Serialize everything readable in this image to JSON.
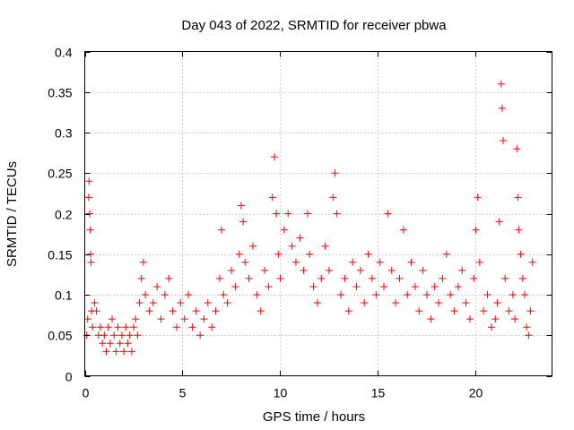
{
  "chart_data": {
    "type": "scatter",
    "title": "Day 043 of 2022, SRMTID for receiver pbwa",
    "xlabel": "GPS time / hours",
    "ylabel": "SRMTID / TECUs",
    "xlim": [
      0,
      23.9
    ],
    "ylim": [
      0,
      0.4
    ],
    "xticks": [
      0,
      5,
      10,
      15,
      20
    ],
    "xtick_labels": [
      "0",
      "5",
      "10",
      "15",
      "20"
    ],
    "yticks": [
      0,
      0.05,
      0.1,
      0.15,
      0.2,
      0.25,
      0.3,
      0.35,
      0.4
    ],
    "ytick_labels": [
      "0",
      "0.05",
      "0.1",
      "0.15",
      "0.2",
      "0.25",
      "0.3",
      "0.35",
      "0.4"
    ],
    "grid": true,
    "marker": "+",
    "color": "#ff0000",
    "series": [
      {
        "name": "SRMTID",
        "points": [
          [
            0.1,
            0.05
          ],
          [
            0.15,
            0.07
          ],
          [
            0.2,
            0.22
          ],
          [
            0.22,
            0.24
          ],
          [
            0.25,
            0.2
          ],
          [
            0.28,
            0.18
          ],
          [
            0.3,
            0.15
          ],
          [
            0.32,
            0.14
          ],
          [
            0.35,
            0.08
          ],
          [
            0.4,
            0.06
          ],
          [
            0.5,
            0.09
          ],
          [
            0.6,
            0.08
          ],
          [
            0.7,
            0.05
          ],
          [
            0.8,
            0.06
          ],
          [
            0.9,
            0.04
          ],
          [
            1.0,
            0.05
          ],
          [
            1.1,
            0.03
          ],
          [
            1.2,
            0.06
          ],
          [
            1.3,
            0.04
          ],
          [
            1.4,
            0.07
          ],
          [
            1.5,
            0.05
          ],
          [
            1.6,
            0.03
          ],
          [
            1.7,
            0.06
          ],
          [
            1.8,
            0.04
          ],
          [
            1.9,
            0.05
          ],
          [
            2.0,
            0.03
          ],
          [
            2.1,
            0.06
          ],
          [
            2.2,
            0.04
          ],
          [
            2.3,
            0.05
          ],
          [
            2.4,
            0.03
          ],
          [
            2.5,
            0.06
          ],
          [
            2.6,
            0.07
          ],
          [
            2.7,
            0.05
          ],
          [
            2.8,
            0.09
          ],
          [
            2.9,
            0.12
          ],
          [
            3.0,
            0.14
          ],
          [
            3.1,
            0.1
          ],
          [
            3.3,
            0.08
          ],
          [
            3.5,
            0.09
          ],
          [
            3.7,
            0.11
          ],
          [
            3.9,
            0.07
          ],
          [
            4.1,
            0.1
          ],
          [
            4.3,
            0.12
          ],
          [
            4.5,
            0.08
          ],
          [
            4.7,
            0.06
          ],
          [
            4.9,
            0.09
          ],
          [
            5.1,
            0.07
          ],
          [
            5.3,
            0.1
          ],
          [
            5.5,
            0.06
          ],
          [
            5.7,
            0.08
          ],
          [
            5.9,
            0.05
          ],
          [
            6.1,
            0.07
          ],
          [
            6.3,
            0.09
          ],
          [
            6.5,
            0.06
          ],
          [
            6.7,
            0.08
          ],
          [
            6.9,
            0.12
          ],
          [
            7.0,
            0.18
          ],
          [
            7.1,
            0.1
          ],
          [
            7.3,
            0.09
          ],
          [
            7.5,
            0.13
          ],
          [
            7.7,
            0.11
          ],
          [
            7.9,
            0.15
          ],
          [
            8.0,
            0.21
          ],
          [
            8.1,
            0.19
          ],
          [
            8.2,
            0.14
          ],
          [
            8.4,
            0.12
          ],
          [
            8.6,
            0.16
          ],
          [
            8.8,
            0.1
          ],
          [
            9.0,
            0.08
          ],
          [
            9.2,
            0.13
          ],
          [
            9.4,
            0.11
          ],
          [
            9.6,
            0.22
          ],
          [
            9.7,
            0.27
          ],
          [
            9.8,
            0.2
          ],
          [
            9.9,
            0.15
          ],
          [
            10.0,
            0.12
          ],
          [
            10.2,
            0.18
          ],
          [
            10.4,
            0.2
          ],
          [
            10.6,
            0.16
          ],
          [
            10.8,
            0.14
          ],
          [
            11.0,
            0.17
          ],
          [
            11.2,
            0.13
          ],
          [
            11.4,
            0.2
          ],
          [
            11.5,
            0.15
          ],
          [
            11.7,
            0.11
          ],
          [
            11.9,
            0.09
          ],
          [
            12.1,
            0.12
          ],
          [
            12.3,
            0.16
          ],
          [
            12.5,
            0.13
          ],
          [
            12.7,
            0.22
          ],
          [
            12.8,
            0.25
          ],
          [
            12.9,
            0.2
          ],
          [
            13.1,
            0.1
          ],
          [
            13.3,
            0.12
          ],
          [
            13.5,
            0.08
          ],
          [
            13.7,
            0.14
          ],
          [
            13.9,
            0.11
          ],
          [
            14.1,
            0.13
          ],
          [
            14.3,
            0.09
          ],
          [
            14.5,
            0.15
          ],
          [
            14.7,
            0.12
          ],
          [
            14.9,
            0.1
          ],
          [
            15.1,
            0.14
          ],
          [
            15.3,
            0.11
          ],
          [
            15.5,
            0.2
          ],
          [
            15.7,
            0.13
          ],
          [
            15.9,
            0.09
          ],
          [
            16.1,
            0.12
          ],
          [
            16.3,
            0.18
          ],
          [
            16.5,
            0.1
          ],
          [
            16.7,
            0.14
          ],
          [
            16.9,
            0.11
          ],
          [
            17.1,
            0.08
          ],
          [
            17.3,
            0.13
          ],
          [
            17.5,
            0.1
          ],
          [
            17.7,
            0.07
          ],
          [
            17.9,
            0.11
          ],
          [
            18.1,
            0.09
          ],
          [
            18.3,
            0.12
          ],
          [
            18.5,
            0.15
          ],
          [
            18.7,
            0.1
          ],
          [
            18.9,
            0.08
          ],
          [
            19.1,
            0.11
          ],
          [
            19.3,
            0.13
          ],
          [
            19.5,
            0.09
          ],
          [
            19.7,
            0.07
          ],
          [
            19.9,
            0.12
          ],
          [
            20.0,
            0.18
          ],
          [
            20.1,
            0.22
          ],
          [
            20.2,
            0.14
          ],
          [
            20.4,
            0.08
          ],
          [
            20.6,
            0.1
          ],
          [
            20.8,
            0.06
          ],
          [
            21.0,
            0.07
          ],
          [
            21.1,
            0.09
          ],
          [
            21.2,
            0.19
          ],
          [
            21.3,
            0.36
          ],
          [
            21.35,
            0.33
          ],
          [
            21.4,
            0.29
          ],
          [
            21.5,
            0.12
          ],
          [
            21.7,
            0.08
          ],
          [
            21.9,
            0.1
          ],
          [
            22.0,
            0.07
          ],
          [
            22.1,
            0.28
          ],
          [
            22.15,
            0.22
          ],
          [
            22.2,
            0.18
          ],
          [
            22.3,
            0.15
          ],
          [
            22.4,
            0.12
          ],
          [
            22.5,
            0.1
          ],
          [
            22.6,
            0.06
          ],
          [
            22.7,
            0.05
          ],
          [
            22.8,
            0.08
          ],
          [
            22.9,
            0.14
          ]
        ]
      }
    ]
  }
}
